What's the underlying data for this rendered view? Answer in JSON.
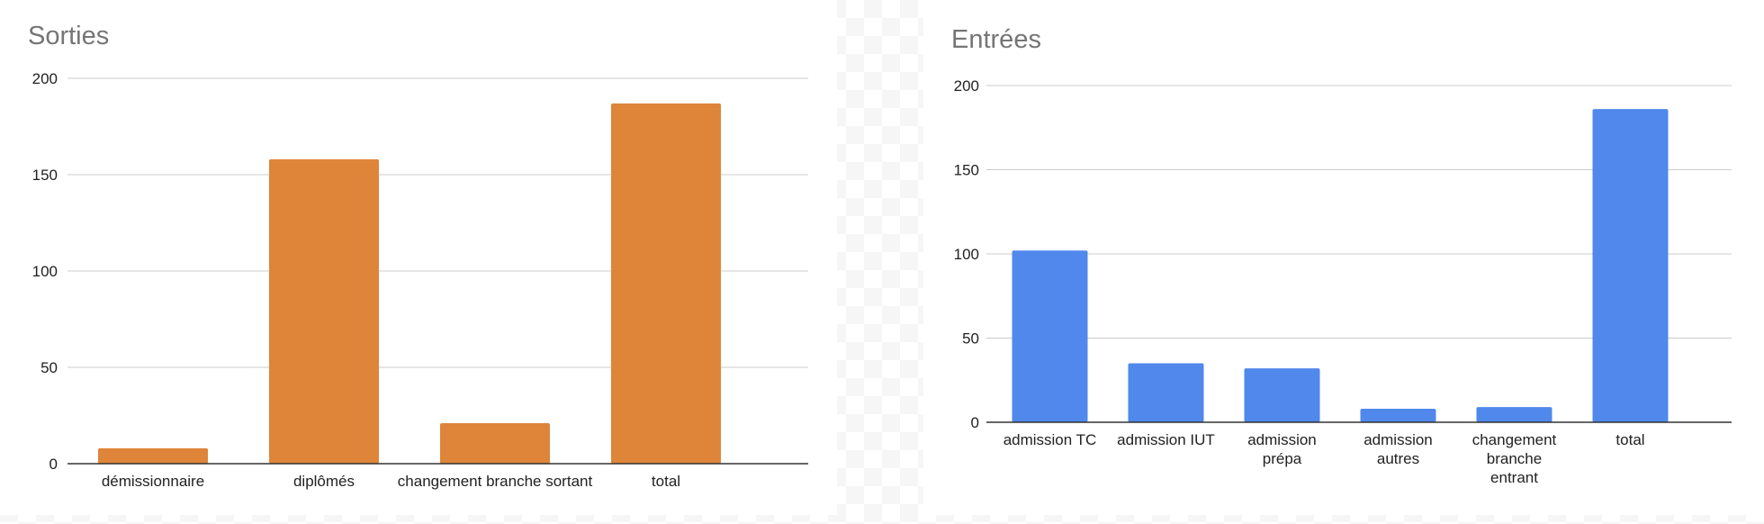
{
  "chart_data": [
    {
      "type": "bar",
      "title": "Sorties",
      "xlabel": "",
      "ylabel": "",
      "ylim": [
        0,
        200
      ],
      "yticks": [
        0,
        50,
        100,
        150,
        200
      ],
      "grid": true,
      "color": "#de853a",
      "categories": [
        "démissionnaire",
        "diplômés",
        "changement branche sortant",
        "total"
      ],
      "values": [
        8,
        158,
        21,
        187
      ]
    },
    {
      "type": "bar",
      "title": "Entrées",
      "xlabel": "",
      "ylabel": "",
      "ylim": [
        0,
        200
      ],
      "yticks": [
        0,
        50,
        100,
        150,
        200
      ],
      "grid": true,
      "color": "#5088eb",
      "categories": [
        "admission TC",
        "admission IUT",
        "admission prépa",
        "admission autres",
        "changement branche entrant",
        "total"
      ],
      "values": [
        102,
        35,
        32,
        8,
        9,
        186
      ]
    }
  ]
}
